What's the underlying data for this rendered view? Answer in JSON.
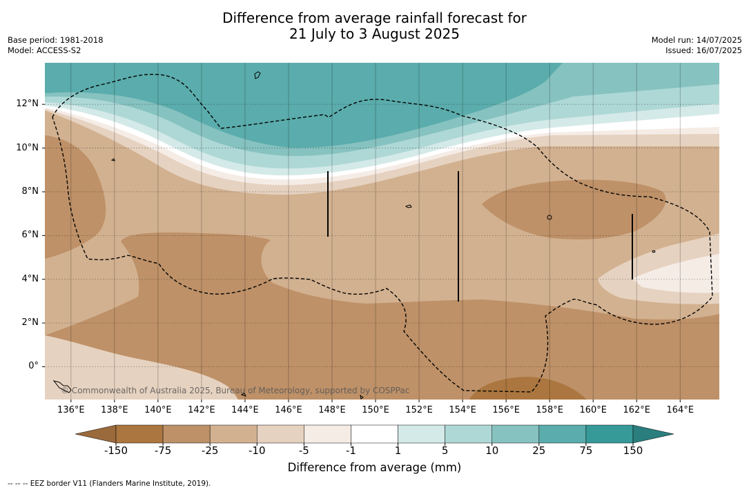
{
  "header": {
    "title_line1": "Difference from average rainfall forecast for",
    "title_line2": "21 July to 3 August 2025",
    "base_period": "Base period: 1981-2018",
    "model": "Model: ACCESS-S2",
    "model_run": "Model run: 14/07/2025",
    "issued": "Issued: 16/07/2025"
  },
  "map": {
    "lon_labels": [
      "136°E",
      "138°E",
      "140°E",
      "142°E",
      "144°E",
      "146°E",
      "148°E",
      "150°E",
      "152°E",
      "154°E",
      "156°E",
      "158°E",
      "160°E",
      "162°E",
      "164°E"
    ],
    "lat_labels": [
      "12°N",
      "10°N",
      "8°N",
      "6°N",
      "4°N",
      "2°N",
      "0°"
    ],
    "lon_range": [
      134.8,
      165.8
    ],
    "lat_range": [
      -1.5,
      13.9
    ],
    "copyright": "© Commonwealth of Australia 2025, Bureau of Meteorology, supported by COSPPac"
  },
  "legend": {
    "ticks": [
      "-150",
      "-75",
      "-25",
      "-10",
      "-5",
      "-1",
      "1",
      "5",
      "10",
      "25",
      "75",
      "150"
    ],
    "colors": {
      "below_min": "#9b6a3c",
      "bins": [
        "#ab763f",
        "#be9168",
        "#d2b190",
        "#e6d2c0",
        "#f5ece6",
        "#ffffff",
        "#d4eae8",
        "#aed8d6",
        "#86c2c0",
        "#5bacac",
        "#369a99"
      ],
      "above_max": "#2a7e7e"
    },
    "title": "Difference from average (mm)"
  },
  "footnote": "--  --  -- EEZ border V11 (Flanders Marine Institute, 2019)."
}
